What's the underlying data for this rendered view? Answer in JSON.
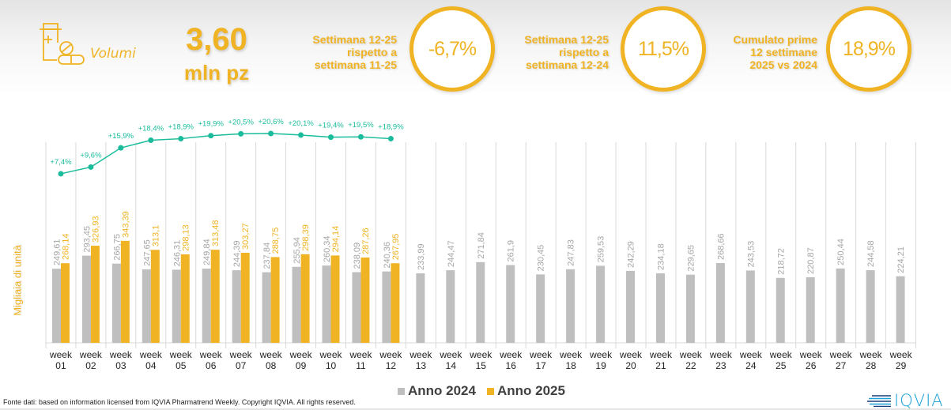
{
  "header": {
    "category_label": "Volumi",
    "category_icon": "pill-box-icon",
    "volume_value": "3,60",
    "volume_unit": "mln pz",
    "kpis": [
      {
        "text_lines": [
          "Settimana 12-25",
          "rispetto a",
          "settimana 11-25"
        ],
        "value": "-6,7%"
      },
      {
        "text_lines": [
          "Settimana 12-25",
          "rispetto a",
          "settimana 12-24"
        ],
        "value": "11,5%"
      },
      {
        "text_lines": [
          "Cumulato prime",
          "12 settimane",
          "2025 vs 2024"
        ],
        "value": "18,9%"
      }
    ]
  },
  "colors": {
    "accent": "#f0b323",
    "series_2024": "#bfbfbf",
    "series_2025": "#f0b323",
    "growth_line": "#1abc9c",
    "label_2024": "#a6a6a6"
  },
  "chart_data": {
    "type": "bar",
    "title": "",
    "xlabel": "",
    "ylabel": "Migliaia di unità",
    "ylim": [
      0,
      400
    ],
    "grid": "vertical category separators",
    "legend_position": "bottom-center",
    "categories": [
      "week 01",
      "week 02",
      "week 03",
      "week 04",
      "week 05",
      "week 06",
      "week 07",
      "week 08",
      "week 09",
      "week 10",
      "week 11",
      "week 12",
      "week 13",
      "week 14",
      "week 15",
      "week 16",
      "week 17",
      "week 18",
      "week 19",
      "week 20",
      "week 21",
      "week 22",
      "week 23",
      "week 24",
      "week 25",
      "week 26",
      "week 27",
      "week 28",
      "week 29"
    ],
    "category_lines": [
      [
        "week",
        "01"
      ],
      [
        "week",
        "02"
      ],
      [
        "week",
        "03"
      ],
      [
        "week",
        "04"
      ],
      [
        "week",
        "05"
      ],
      [
        "week",
        "06"
      ],
      [
        "week",
        "07"
      ],
      [
        "week",
        "08"
      ],
      [
        "week",
        "09"
      ],
      [
        "week",
        "10"
      ],
      [
        "week",
        "11"
      ],
      [
        "week",
        "12"
      ],
      [
        "week",
        "13"
      ],
      [
        "week",
        "14"
      ],
      [
        "week",
        "15"
      ],
      [
        "week",
        "16"
      ],
      [
        "week",
        "17"
      ],
      [
        "week",
        "18"
      ],
      [
        "week",
        "19"
      ],
      [
        "week",
        "20"
      ],
      [
        "week",
        "21"
      ],
      [
        "week",
        "22"
      ],
      [
        "week",
        "23"
      ],
      [
        "week",
        "24"
      ],
      [
        "week",
        "25"
      ],
      [
        "week",
        "26"
      ],
      [
        "week",
        "27"
      ],
      [
        "week",
        "28"
      ],
      [
        "week",
        "29"
      ]
    ],
    "series": [
      {
        "name": "Anno 2024",
        "values": [
          249.61,
          293.45,
          266.75,
          247.65,
          246.31,
          249.84,
          244.39,
          237.84,
          255.94,
          260.34,
          238.09,
          240.36,
          233.99,
          244.47,
          271.84,
          261.9,
          230.45,
          247.83,
          259.53,
          242.29,
          234.18,
          229.65,
          268.66,
          243.53,
          218.72,
          220.87,
          250.44,
          244.58,
          224.21
        ],
        "labels": [
          "249,61",
          "293,45",
          "266,75",
          "247,65",
          "246,31",
          "249,84",
          "244,39",
          "237,84",
          "255,94",
          "260,34",
          "238,09",
          "240,36",
          "233,99",
          "244,47",
          "271,84",
          "261,9",
          "230,45",
          "247,83",
          "259,53",
          "242,29",
          "234,18",
          "229,65",
          "268,66",
          "243,53",
          "218,72",
          "220,87",
          "250,44",
          "244,58",
          "224,21"
        ]
      },
      {
        "name": "Anno 2025",
        "values": [
          268.14,
          326.93,
          343.39,
          313.1,
          298.13,
          313.48,
          303.27,
          288.75,
          298.39,
          294.14,
          287.26,
          267.95
        ],
        "labels": [
          "268,14",
          "326,93",
          "343,39",
          "313,1",
          "298,13",
          "313,48",
          "303,27",
          "288,75",
          "298,39",
          "294,14",
          "287,26",
          "267,95"
        ]
      }
    ],
    "growth_line": {
      "name": "Cumulative growth 2025 vs 2024",
      "values": [
        7.4,
        9.6,
        15.9,
        18.4,
        18.9,
        19.9,
        20.5,
        20.6,
        20.1,
        19.4,
        19.5,
        18.9
      ],
      "labels": [
        "+7,4%",
        "+9,6%",
        "+15,9%",
        "+18,4%",
        "+18,9%",
        "+19,9%",
        "+20,5%",
        "+20,6%",
        "+20,1%",
        "+19,4%",
        "+19,5%",
        "+18,9%"
      ]
    }
  },
  "legend": [
    {
      "label": "Anno 2024"
    },
    {
      "label": "Anno 2025"
    }
  ],
  "footer": {
    "source": "Fonte dati: based on information licensed from IQVIA Pharmatrend Weekly. Copyright IQVIA. All rights reserved.",
    "logo_text": "IQVIA"
  }
}
